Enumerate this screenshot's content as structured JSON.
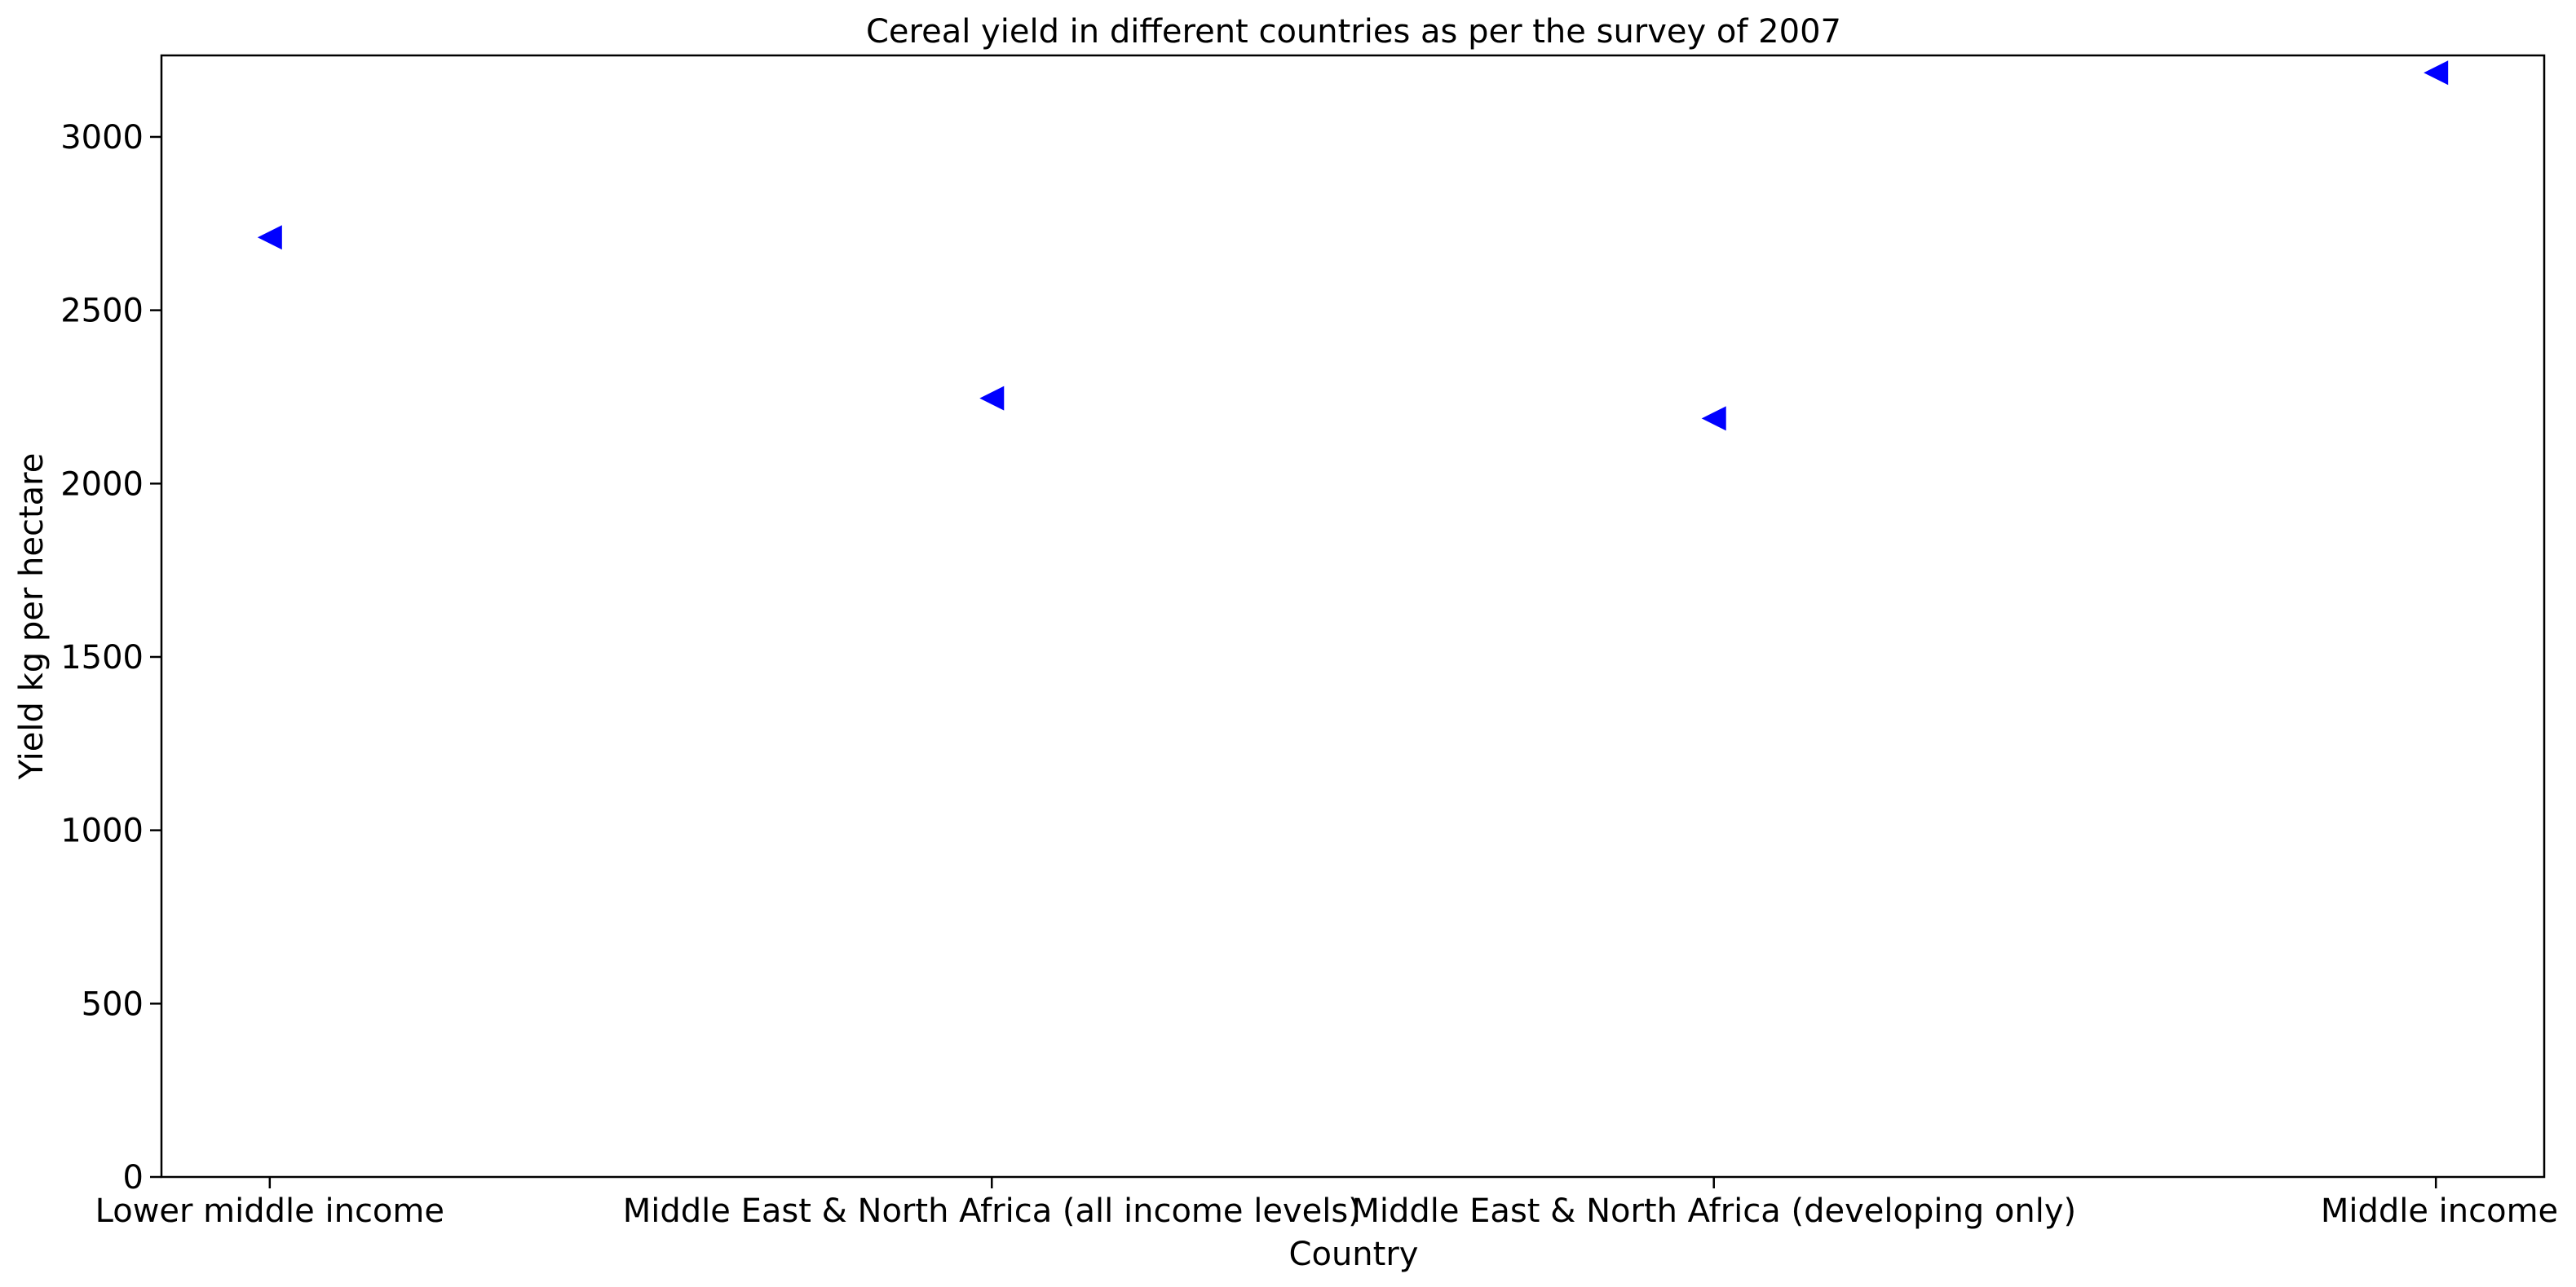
{
  "chart_data": {
    "type": "scatter",
    "title": "Cereal yield in different countries as per the survey of 2007",
    "xlabel": "Country",
    "ylabel": "Yield kg per hectare",
    "categories": [
      "Lower middle income",
      "Middle East & North Africa (all income levels)",
      "Middle East & North Africa (developing only)",
      "Middle income"
    ],
    "series": [
      {
        "values": [
          2710,
          2246,
          2188,
          3185
        ],
        "color": "#0000ff",
        "marker": "triangle-left"
      }
    ],
    "ylim": [
      0,
      3235
    ],
    "yticks": [
      0,
      500,
      1000,
      1500,
      2000,
      2500,
      3000
    ],
    "grid": false,
    "legend": "none"
  }
}
